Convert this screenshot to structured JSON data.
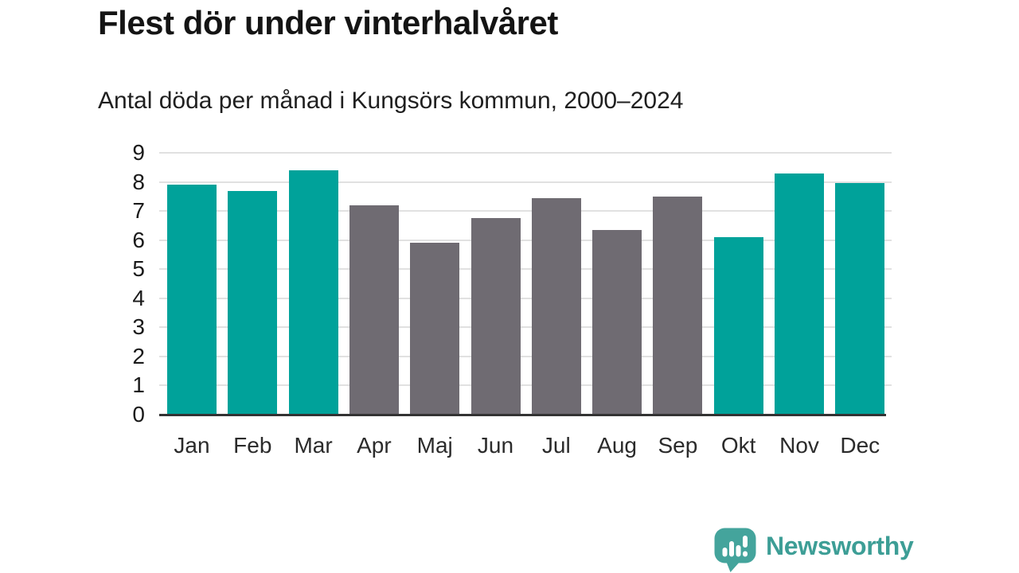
{
  "header": {
    "title": "Flest dör under vinterhalvåret",
    "subtitle": "Antal döda per månad i Kungsörs kommun, 2000–2024"
  },
  "chart_data": {
    "type": "bar",
    "title": "Flest dör under vinterhalvåret",
    "subtitle": "Antal döda per månad i Kungsörs kommun, 2000–2024",
    "categories": [
      "Jan",
      "Feb",
      "Mar",
      "Apr",
      "Maj",
      "Jun",
      "Jul",
      "Aug",
      "Sep",
      "Okt",
      "Nov",
      "Dec"
    ],
    "values": [
      7.9,
      7.7,
      8.4,
      7.2,
      5.9,
      6.75,
      7.45,
      6.35,
      7.5,
      6.1,
      8.3,
      7.95
    ],
    "bar_colors": [
      "#00a29a",
      "#00a29a",
      "#00a29a",
      "#6f6b72",
      "#6f6b72",
      "#6f6b72",
      "#6f6b72",
      "#6f6b72",
      "#6f6b72",
      "#00a29a",
      "#00a29a",
      "#00a29a"
    ],
    "xlabel": "",
    "ylabel": "",
    "ylim": [
      0,
      9
    ],
    "yticks": [
      0,
      1,
      2,
      3,
      4,
      5,
      6,
      7,
      8,
      9
    ],
    "grid": true,
    "legend": "none",
    "colors": {
      "winter_highlight": "#00a29a",
      "summer_neutral": "#6f6b72",
      "gridline": "#e1e1e1",
      "axis": "#333333"
    }
  },
  "footer": {
    "brand": "Newsworthy",
    "logo_icon": "bar-chart-speech-bubble-icon",
    "logo_color": "#44a49c"
  }
}
